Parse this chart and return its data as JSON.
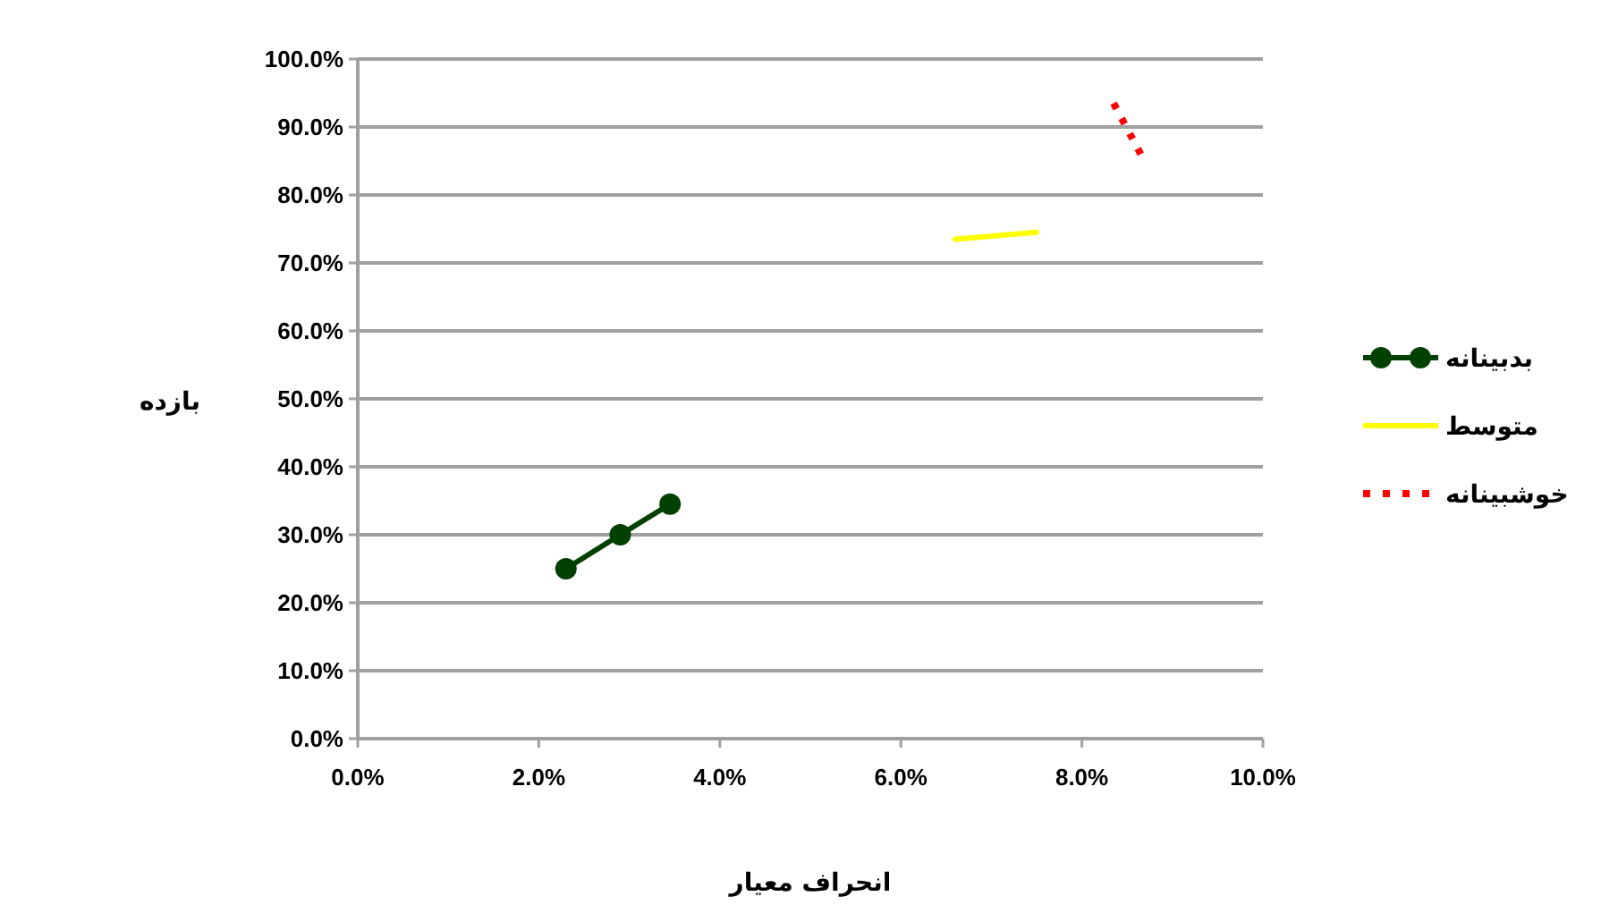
{
  "chart_data": {
    "type": "line",
    "xlabel": "انحراف معیار",
    "ylabel": "بازده",
    "xlim": [
      0,
      10
    ],
    "ylim": [
      0,
      100
    ],
    "xticks": [
      {
        "value": 0,
        "label": "0.0%"
      },
      {
        "value": 2,
        "label": "2.0%"
      },
      {
        "value": 4,
        "label": "4.0%"
      },
      {
        "value": 6,
        "label": "6.0%"
      },
      {
        "value": 8,
        "label": "8.0%"
      },
      {
        "value": 10,
        "label": "10.0%"
      }
    ],
    "yticks": [
      {
        "value": 0,
        "label": "0.0%"
      },
      {
        "value": 10,
        "label": "10.0%"
      },
      {
        "value": 20,
        "label": "20.0%"
      },
      {
        "value": 30,
        "label": "30.0%"
      },
      {
        "value": 40,
        "label": "40.0%"
      },
      {
        "value": 50,
        "label": "50.0%"
      },
      {
        "value": 60,
        "label": "60.0%"
      },
      {
        "value": 70,
        "label": "70.0%"
      },
      {
        "value": 80,
        "label": "80.0%"
      },
      {
        "value": 90,
        "label": "90.0%"
      },
      {
        "value": 100,
        "label": "100.0%"
      }
    ],
    "grid": "y",
    "legend": "right",
    "series": [
      {
        "name": "بدبینانه",
        "color": "#004000",
        "x": [
          2.3,
          2.9,
          3.45
        ],
        "values": [
          25,
          30,
          34.5
        ],
        "marker": "circle",
        "line_style": "solid"
      },
      {
        "name": "متوسط",
        "color": "#ffff00",
        "x": [
          6.6,
          7.5
        ],
        "values": [
          73.5,
          74.5
        ],
        "marker": "none",
        "line_style": "solid"
      },
      {
        "name": "خوشبینانه",
        "color": "#ff0000",
        "x": [
          8.35,
          8.65
        ],
        "values": [
          93.5,
          86
        ],
        "marker": "none",
        "line_style": "dotted"
      }
    ]
  }
}
